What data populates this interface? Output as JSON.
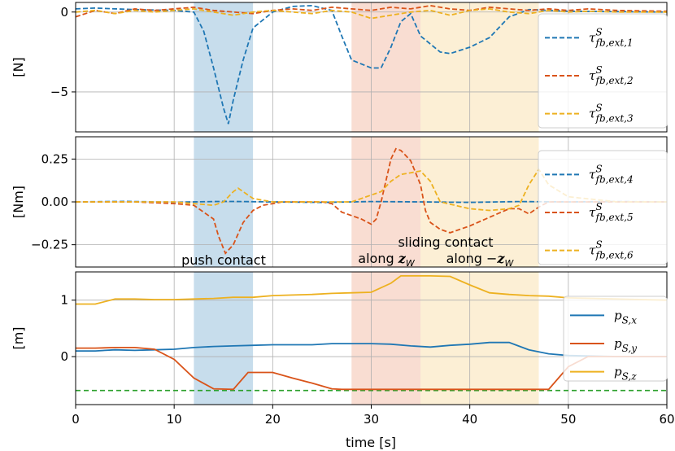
{
  "chart_data": {
    "type": "line",
    "xlabel": "time [s]",
    "xlim": [
      0,
      60
    ],
    "x_ticks": [
      0,
      10,
      20,
      30,
      40,
      50,
      60
    ],
    "regions": [
      {
        "name": "push-contact",
        "x": [
          12,
          18
        ],
        "color": "#1f77b4"
      },
      {
        "name": "along-zw",
        "x": [
          28,
          35
        ],
        "color": "#e8774a"
      },
      {
        "name": "along-minus-zw",
        "x": [
          35,
          47
        ],
        "color": "#f2c057"
      }
    ],
    "annotations": {
      "push_contact": "push contact",
      "sliding_contact": "sliding contact",
      "along_zw": "along z_W",
      "along_minus_zw": "along −z_W"
    },
    "panels": [
      {
        "ylabel": "[N]",
        "ylim": [
          -7.5,
          0.6
        ],
        "y_ticks": [
          0,
          -5
        ],
        "y_tick_labels": [
          "0",
          "−5"
        ],
        "series": [
          {
            "name": "τ^S_fb,ext,1",
            "color": "#1f77b4",
            "style": "dashed",
            "x": [
              0,
              2,
              6,
              10,
              12,
              13,
              14,
              15,
              15.5,
              16,
              17,
              18,
              20,
              22,
              24,
              26,
              27,
              28,
              30,
              31,
              32,
              33,
              34,
              35,
              37,
              38,
              40,
              42,
              44,
              46,
              48,
              50,
              60
            ],
            "y": [
              0.2,
              0.25,
              0.15,
              0.1,
              0,
              -1.2,
              -3.5,
              -6.0,
              -7.0,
              -5.5,
              -3.0,
              -1.0,
              0,
              0.35,
              0.4,
              0.1,
              -1.5,
              -3.0,
              -3.5,
              -3.5,
              -2.2,
              -0.6,
              -0.1,
              -1.5,
              -2.5,
              -2.6,
              -2.2,
              -1.6,
              -0.3,
              0.15,
              0.1,
              0.05,
              0.0
            ]
          },
          {
            "name": "τ^S_fb,ext,2",
            "color": "#d95319",
            "style": "dashed",
            "x": [
              0,
              2,
              4,
              6,
              8,
              10,
              12,
              14,
              16,
              18,
              20,
              22,
              24,
              26,
              28,
              30,
              32,
              34,
              36,
              38,
              40,
              42,
              44,
              46,
              48,
              50,
              52,
              55,
              60
            ],
            "y": [
              -0.3,
              0.1,
              -0.1,
              0.2,
              0.1,
              0.2,
              0.3,
              0.1,
              0.0,
              -0.1,
              0.1,
              0.2,
              0.1,
              0.3,
              0.2,
              0.1,
              0.3,
              0.2,
              0.4,
              0.2,
              0.1,
              0.3,
              0.2,
              0.1,
              0.2,
              0.1,
              0.2,
              0.1,
              0.05
            ]
          },
          {
            "name": "τ^S_fb,ext,3",
            "color": "#edb120",
            "style": "dashed",
            "x": [
              0,
              2,
              4,
              6,
              8,
              10,
              12,
              14,
              16,
              18,
              20,
              22,
              24,
              26,
              28,
              30,
              32,
              34,
              36,
              38,
              40,
              42,
              44,
              46,
              48,
              50,
              52,
              55,
              60
            ],
            "y": [
              0.0,
              0.1,
              -0.1,
              0.1,
              0.0,
              0.1,
              0.2,
              0.0,
              -0.2,
              0.0,
              0.1,
              0.0,
              -0.1,
              0.1,
              0.0,
              -0.4,
              -0.2,
              0.0,
              0.1,
              -0.2,
              0.1,
              0.2,
              0.0,
              -0.1,
              0.1,
              0.0,
              0.05,
              0.0,
              0.0
            ]
          }
        ]
      },
      {
        "ylabel": "[Nm]",
        "ylim": [
          -0.38,
          0.38
        ],
        "y_ticks": [
          0.25,
          0.0,
          -0.25
        ],
        "y_tick_labels": [
          "0.25",
          "0.00",
          "−0.25"
        ],
        "series": [
          {
            "name": "τ^S_fb,ext,4",
            "color": "#1f77b4",
            "style": "dashed",
            "x": [
              0,
              5,
              10,
              15,
              20,
              25,
              30,
              35,
              40,
              45,
              50,
              55,
              60
            ],
            "y": [
              0,
              0.003,
              -0.002,
              0.003,
              0.0,
              -0.003,
              0.002,
              0.0,
              -0.003,
              0.002,
              0.0,
              0.002,
              0.0
            ]
          },
          {
            "name": "τ^S_fb,ext,5",
            "color": "#d95319",
            "style": "dashed",
            "x": [
              0,
              6,
              10,
              12,
              14,
              14.5,
              15.2,
              16,
              17,
              18,
              19,
              21,
              25,
              26,
              27,
              28,
              29,
              30,
              30.5,
              31,
              32,
              32.5,
              33,
              34,
              35,
              35.5,
              36,
              37,
              38,
              40,
              42,
              44,
              45,
              46,
              47,
              48,
              50,
              55,
              60
            ],
            "y": [
              0,
              0,
              -0.01,
              -0.02,
              -0.1,
              -0.2,
              -0.3,
              -0.25,
              -0.12,
              -0.05,
              -0.02,
              0,
              0,
              -0.01,
              -0.06,
              -0.08,
              -0.1,
              -0.13,
              -0.1,
              0.0,
              0.25,
              0.31,
              0.3,
              0.24,
              0.1,
              -0.05,
              -0.12,
              -0.16,
              -0.18,
              -0.14,
              -0.09,
              -0.04,
              -0.04,
              -0.07,
              -0.03,
              0.0,
              0.0,
              0.0,
              0.0
            ]
          },
          {
            "name": "τ^S_fb,ext,6",
            "color": "#edb120",
            "style": "dashed",
            "x": [
              0,
              10,
              14,
              15,
              16,
              16.5,
              17.5,
              18,
              20,
              25,
              28,
              29,
              30,
              31,
              32,
              33,
              34,
              35,
              36,
              37,
              40,
              42,
              44,
              45,
              46,
              47,
              48,
              50,
              55,
              60
            ],
            "y": [
              0,
              0,
              -0.02,
              0.0,
              0.06,
              0.08,
              0.04,
              0.02,
              0.0,
              0.0,
              0.0,
              0.02,
              0.04,
              0.06,
              0.12,
              0.16,
              0.17,
              0.18,
              0.12,
              0.0,
              -0.04,
              -0.05,
              -0.04,
              -0.02,
              0.1,
              0.19,
              0.1,
              0.03,
              0.0,
              0.0
            ]
          }
        ]
      },
      {
        "ylabel": "[m]",
        "ylim": [
          -0.85,
          1.5
        ],
        "y_ticks": [
          1,
          0
        ],
        "y_tick_labels": [
          "1",
          "0"
        ],
        "reference_line": {
          "y": -0.6,
          "color": "#2ca02c",
          "style": "dashed"
        },
        "series": [
          {
            "name": "p_S,x",
            "color": "#1f77b4",
            "style": "solid",
            "x": [
              0,
              2,
              4,
              6,
              8,
              10,
              12,
              14,
              16,
              18,
              20,
              22,
              24,
              26,
              28,
              30,
              32,
              34,
              36,
              38,
              40,
              42,
              44,
              46,
              48,
              50,
              52,
              55,
              60
            ],
            "y": [
              0.1,
              0.1,
              0.12,
              0.11,
              0.12,
              0.13,
              0.16,
              0.18,
              0.19,
              0.2,
              0.21,
              0.21,
              0.21,
              0.23,
              0.23,
              0.23,
              0.22,
              0.19,
              0.17,
              0.2,
              0.22,
              0.25,
              0.25,
              0.12,
              0.05,
              0.02,
              0.01,
              0.0,
              0.0
            ]
          },
          {
            "name": "p_S,y",
            "color": "#d95319",
            "style": "solid",
            "x": [
              0,
              2,
              4,
              6,
              8,
              10,
              12,
              14,
              16,
              17.5,
              20,
              22,
              24,
              26,
              27,
              30,
              35,
              40,
              45,
              48,
              50,
              52,
              55,
              60
            ],
            "y": [
              0.15,
              0.15,
              0.16,
              0.16,
              0.13,
              -0.05,
              -0.38,
              -0.57,
              -0.58,
              -0.28,
              -0.28,
              -0.38,
              -0.47,
              -0.57,
              -0.58,
              -0.58,
              -0.58,
              -0.58,
              -0.58,
              -0.58,
              -0.18,
              0.0,
              0.0,
              0.0
            ]
          },
          {
            "name": "p_S,z",
            "color": "#edb120",
            "style": "solid",
            "x": [
              0,
              2,
              4,
              6,
              8,
              10,
              12,
              14,
              16,
              18,
              20,
              22,
              24,
              26,
              28,
              30,
              32,
              33,
              34,
              36,
              38,
              40,
              42,
              44,
              46,
              48,
              50,
              55,
              60
            ],
            "y": [
              0.93,
              0.93,
              1.02,
              1.02,
              1.01,
              1.01,
              1.02,
              1.03,
              1.05,
              1.05,
              1.08,
              1.09,
              1.1,
              1.12,
              1.13,
              1.14,
              1.3,
              1.43,
              1.43,
              1.43,
              1.42,
              1.27,
              1.13,
              1.1,
              1.08,
              1.07,
              1.04,
              1.02,
              1.0
            ]
          }
        ]
      }
    ]
  }
}
